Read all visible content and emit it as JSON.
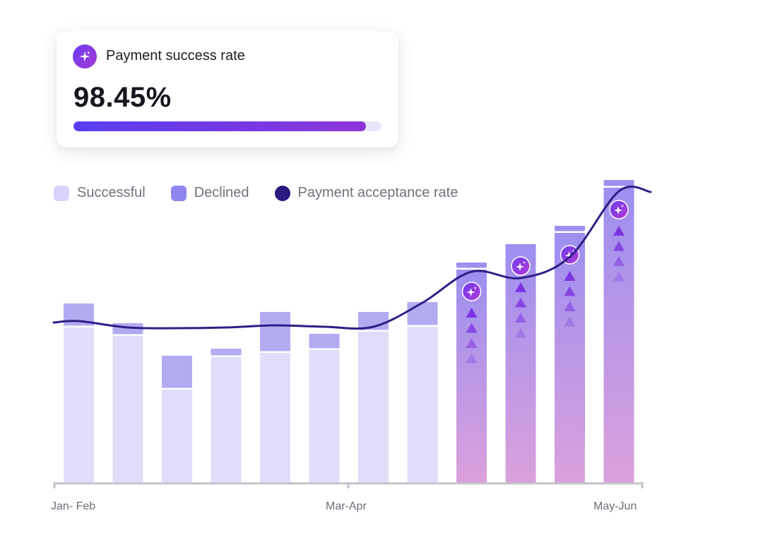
{
  "card": {
    "title": "Payment success rate",
    "value_text": "98.45%",
    "progress": 0.95,
    "icon": "sparkle-icon"
  },
  "legend": [
    {
      "label": "Successful",
      "color": "#d8d3fb",
      "shape": "square"
    },
    {
      "label": "Declined",
      "color": "#8f87ef",
      "shape": "square"
    },
    {
      "label": "Payment acceptance rate",
      "color": "#2a1a7e",
      "shape": "circle"
    }
  ],
  "colors": {
    "successful": "#e0ddfa",
    "declined": "#b2abf2",
    "highlight_top": "#9d8ff0",
    "highlight_bottom": "#dba0dc",
    "line": "#2e1f86",
    "axis": "#c4c3cb",
    "badge": "#7b35e0"
  },
  "chart_data": {
    "type": "bar",
    "series": [
      {
        "name": "Successful",
        "values": [
          220,
          208,
          132,
          178,
          184,
          188,
          214,
          221,
          302,
          338,
          354,
          418
        ]
      },
      {
        "name": "Declined",
        "values": [
          34,
          18,
          48,
          12,
          58,
          23,
          28,
          35,
          10,
          0,
          10,
          11
        ]
      },
      {
        "name": "Payment acceptance rate",
        "values": [
          229,
          220,
          219,
          220,
          223,
          221,
          221,
          255,
          299,
          290,
          320,
          413
        ]
      }
    ],
    "highlighted_from_index": 8,
    "ylim": [
      0,
      432
    ],
    "x_tick_labels": [
      "Jan- Feb",
      "Mar-Apr",
      "May-Jun"
    ],
    "grid": false,
    "legend_position": "top-left"
  }
}
